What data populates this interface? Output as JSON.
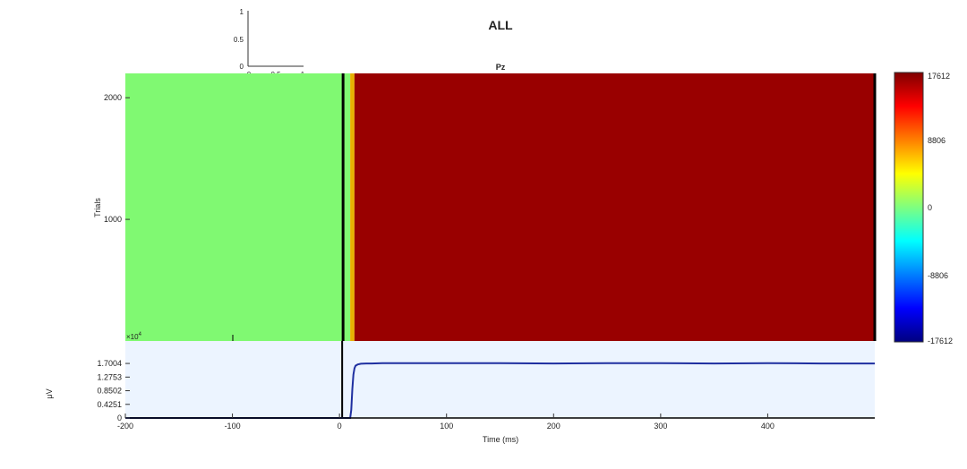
{
  "figure": {
    "title": "ALL"
  },
  "chart_data": [
    {
      "type": "line",
      "panel": "inset",
      "x": [],
      "y": [],
      "xlim": [
        0,
        1
      ],
      "ylim": [
        0,
        1
      ],
      "xticks": [
        "0",
        "0.5",
        "1"
      ],
      "yticks": [
        "0",
        "0.5",
        "1"
      ]
    },
    {
      "type": "heatmap",
      "panel": "erpimage",
      "title": "Pz",
      "ylabel": "Trials",
      "xlim": [
        -200,
        500
      ],
      "ylim": [
        0,
        2200
      ],
      "yticks": [
        "1000",
        "2000"
      ],
      "exponent_label": "×10",
      "exponent_power": "4",
      "regions": [
        {
          "x_start": -200,
          "x_end": 10,
          "value": 0
        },
        {
          "x_start": 10,
          "x_end": 14,
          "value": 8806
        },
        {
          "x_start": 14,
          "x_end": 500,
          "value": 17612
        }
      ],
      "stimulus_line_x": 0,
      "colorbar": {
        "min": -17612,
        "max": 17612,
        "ticks": [
          "17612",
          "8806",
          "0",
          "-8806",
          "-17612"
        ],
        "colormap": [
          "#00007f",
          "#0000ff",
          "#007fff",
          "#00ffff",
          "#7fff7f",
          "#ffff00",
          "#ff7f00",
          "#ff0000",
          "#7f0000"
        ]
      },
      "colors": {
        "low": "#80f972",
        "mid": "#e8b000",
        "high": "#990000",
        "stimulus_line": "#000000"
      }
    },
    {
      "type": "line",
      "panel": "erp",
      "xlabel": "Time (ms)",
      "ylabel": "μV",
      "xlim": [
        -200,
        500
      ],
      "ylim": [
        0,
        2.4
      ],
      "xticks": [
        "-200",
        "-100",
        "0",
        "100",
        "200",
        "300",
        "400"
      ],
      "xtick_values": [
        -200,
        -100,
        0,
        100,
        200,
        300,
        400
      ],
      "yticks": [
        "0",
        "0.4251",
        "0.8502",
        "1.2753",
        "1.7004"
      ],
      "ytick_values": [
        0,
        0.4251,
        0.8502,
        1.2753,
        1.7004
      ],
      "series": [
        {
          "x": [
            -200,
            -100,
            0,
            10,
            11,
            12,
            13,
            14,
            15,
            17,
            20,
            25,
            30,
            40,
            60,
            100,
            150,
            200,
            250,
            300,
            350,
            400,
            450,
            500
          ],
          "y": [
            0,
            0,
            0,
            0,
            0.25,
            0.9,
            1.35,
            1.55,
            1.63,
            1.67,
            1.69,
            1.7,
            1.7,
            1.71,
            1.71,
            1.71,
            1.71,
            1.7,
            1.71,
            1.71,
            1.7,
            1.71,
            1.7,
            1.7
          ],
          "color": "#1f2fa0"
        }
      ],
      "background": "#ecf4ff",
      "stimulus_line_x": 0
    }
  ]
}
